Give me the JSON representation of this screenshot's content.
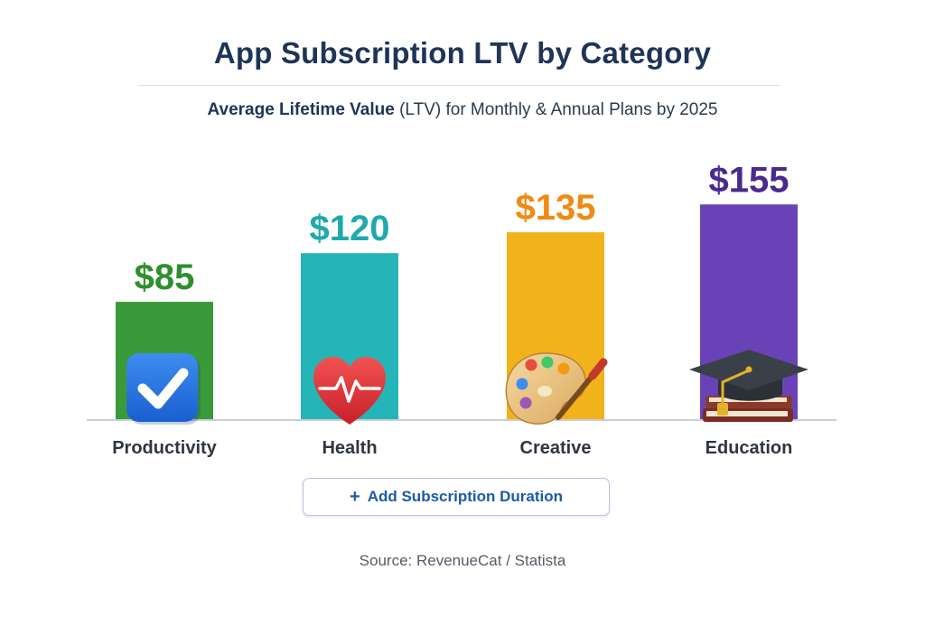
{
  "header": {
    "title": "App Subscription LTV by Category",
    "subtitle_strong": "Average Lifetime Value",
    "subtitle_rest": " (LTV) for Monthly & Annual Plans by 2025"
  },
  "chart_data": {
    "type": "bar",
    "title": "App Subscription LTV by Category",
    "subtitle": "Average Lifetime Value (LTV) for Monthly & Annual Plans by 2025",
    "categories": [
      "Productivity",
      "Health",
      "Creative",
      "Education"
    ],
    "values": [
      85,
      120,
      135,
      155
    ],
    "value_labels": [
      "$85",
      "$120",
      "$135",
      "$155"
    ],
    "colors": [
      "#3a9a3a",
      "#25b5b8",
      "#f2b21b",
      "#6a42b8"
    ],
    "label_colors": [
      "#2f8f2f",
      "#1fa9ad",
      "#f08a12",
      "#4b2a8f"
    ],
    "icons": [
      "checkmark-icon",
      "heart-pulse-icon",
      "palette-icon",
      "graduation-cap-icon"
    ],
    "xlabel": "",
    "ylabel": "",
    "ylim": [
      0,
      180
    ],
    "grid": false
  },
  "action": {
    "plus": "+",
    "label": "Add Subscription Duration"
  },
  "footer": {
    "source": "Source: RevenueCat / Statista"
  }
}
